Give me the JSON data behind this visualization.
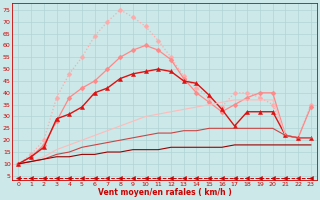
{
  "xlabel": "Vent moyen/en rafales ( km/h )",
  "xlabel_color": "#cc0000",
  "bg_color": "#cce8e8",
  "grid_color": "#aacccc",
  "text_color": "#cc0000",
  "xlim": [
    -0.5,
    23.5
  ],
  "ylim": [
    3,
    78
  ],
  "yticks": [
    5,
    10,
    15,
    20,
    25,
    30,
    35,
    40,
    45,
    50,
    55,
    60,
    65,
    70,
    75
  ],
  "xticks": [
    0,
    1,
    2,
    3,
    4,
    5,
    6,
    7,
    8,
    9,
    10,
    11,
    12,
    13,
    14,
    15,
    16,
    17,
    18,
    19,
    20,
    21,
    22,
    23
  ],
  "lines": [
    {
      "x": [
        0,
        1,
        2,
        3,
        4,
        5,
        6,
        7,
        8,
        9,
        10,
        11,
        12,
        13,
        14,
        15,
        16,
        17,
        18,
        19,
        20,
        21,
        22,
        23
      ],
      "y": [
        10,
        14,
        20,
        38,
        48,
        55,
        64,
        70,
        75,
        72,
        68,
        62,
        55,
        47,
        42,
        38,
        34,
        40,
        40,
        38,
        35,
        22,
        21,
        35
      ],
      "color": "#ffaaaa",
      "marker": "D",
      "markersize": 2.5,
      "linewidth": 0.9,
      "linestyle": ":"
    },
    {
      "x": [
        0,
        1,
        2,
        3,
        4,
        5,
        6,
        7,
        8,
        9,
        10,
        11,
        12,
        13,
        14,
        15,
        16,
        17,
        18,
        19,
        20,
        21,
        22,
        23
      ],
      "y": [
        10,
        13,
        18,
        28,
        38,
        42,
        45,
        50,
        55,
        58,
        60,
        58,
        54,
        46,
        40,
        36,
        32,
        35,
        38,
        40,
        40,
        22,
        21,
        34
      ],
      "color": "#ff8888",
      "marker": "D",
      "markersize": 2.5,
      "linewidth": 0.9,
      "linestyle": "-"
    },
    {
      "x": [
        0,
        1,
        2,
        3,
        4,
        5,
        6,
        7,
        8,
        9,
        10,
        11,
        12,
        13,
        14,
        15,
        16,
        17,
        18,
        19,
        20,
        21,
        22,
        23
      ],
      "y": [
        10,
        13,
        17,
        29,
        31,
        34,
        40,
        42,
        46,
        48,
        49,
        50,
        49,
        45,
        44,
        39,
        33,
        26,
        32,
        32,
        32,
        22,
        21,
        21
      ],
      "color": "#dd1111",
      "marker": "^",
      "markersize": 3,
      "linewidth": 1.0,
      "linestyle": "-"
    },
    {
      "x": [
        0,
        1,
        2,
        3,
        4,
        5,
        6,
        7,
        8,
        9,
        10,
        11,
        12,
        13,
        14,
        15,
        16,
        17,
        18,
        19,
        20,
        21,
        22,
        23
      ],
      "y": [
        10,
        11,
        13,
        16,
        18,
        20,
        22,
        24,
        26,
        28,
        30,
        31,
        32,
        33,
        34,
        35,
        36,
        37,
        37,
        37,
        37,
        22,
        21,
        21
      ],
      "color": "#ffbbbb",
      "marker": null,
      "linewidth": 0.8,
      "linestyle": "-"
    },
    {
      "x": [
        0,
        1,
        2,
        3,
        4,
        5,
        6,
        7,
        8,
        9,
        10,
        11,
        12,
        13,
        14,
        15,
        16,
        17,
        18,
        19,
        20,
        21,
        22,
        23
      ],
      "y": [
        10,
        11,
        12,
        14,
        15,
        17,
        18,
        19,
        20,
        21,
        22,
        23,
        23,
        24,
        24,
        25,
        25,
        25,
        25,
        25,
        25,
        22,
        21,
        21
      ],
      "color": "#cc4444",
      "marker": null,
      "linewidth": 0.8,
      "linestyle": "-"
    },
    {
      "x": [
        0,
        1,
        2,
        3,
        4,
        5,
        6,
        7,
        8,
        9,
        10,
        11,
        12,
        13,
        14,
        15,
        16,
        17,
        18,
        19,
        20,
        21,
        22,
        23
      ],
      "y": [
        10,
        11,
        12,
        13,
        13,
        14,
        14,
        15,
        15,
        16,
        16,
        16,
        17,
        17,
        17,
        17,
        17,
        18,
        18,
        18,
        18,
        18,
        18,
        18
      ],
      "color": "#990000",
      "marker": null,
      "linewidth": 0.8,
      "linestyle": "-"
    },
    {
      "x": [
        0,
        1,
        2,
        3,
        4,
        5,
        6,
        7,
        8,
        9,
        10,
        11,
        12,
        13,
        14,
        15,
        16,
        17,
        18,
        19,
        20,
        21,
        22,
        23
      ],
      "y": [
        4,
        4,
        4,
        4,
        4,
        4,
        4,
        4,
        4,
        4,
        4,
        4,
        4,
        4,
        4,
        4,
        4,
        4,
        4,
        4,
        4,
        4,
        4,
        4
      ],
      "color": "#cc0000",
      "marker": "<",
      "markersize": 3,
      "linewidth": 0.7,
      "linestyle": "--"
    }
  ]
}
